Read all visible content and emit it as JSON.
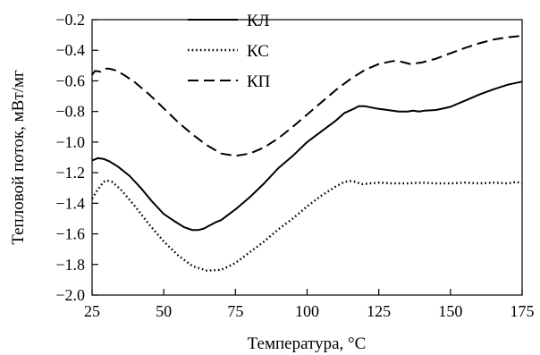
{
  "chart_data": {
    "type": "line",
    "xlabel": "Температура, °C",
    "ylabel": "Тепловой поток, мВт/мг",
    "xlim": [
      25,
      175
    ],
    "ylim": [
      -2.0,
      -0.2
    ],
    "xticks": [
      25,
      50,
      75,
      100,
      125,
      150,
      175
    ],
    "yticks": [
      -2.0,
      -1.8,
      -1.6,
      -1.4,
      -1.2,
      -1.0,
      -0.8,
      -0.6,
      -0.4,
      -0.2
    ],
    "grid": false,
    "legend_position": "top-left",
    "series": [
      {
        "name": "КЛ",
        "style": "solid",
        "color": "#000000",
        "x": [
          25,
          27,
          29,
          31,
          34,
          38,
          42,
          46,
          50,
          54,
          57,
          60,
          62,
          64,
          66,
          68,
          70,
          75,
          80,
          85,
          90,
          95,
          100,
          105,
          110,
          113,
          116,
          118,
          120,
          124,
          128,
          132,
          135,
          137,
          139,
          141,
          145,
          150,
          155,
          160,
          165,
          170,
          175
        ],
        "y": [
          -1.12,
          -1.105,
          -1.11,
          -1.125,
          -1.16,
          -1.22,
          -1.3,
          -1.39,
          -1.47,
          -1.52,
          -1.555,
          -1.575,
          -1.575,
          -1.565,
          -1.545,
          -1.525,
          -1.51,
          -1.44,
          -1.36,
          -1.27,
          -1.17,
          -1.09,
          -1.0,
          -0.93,
          -0.86,
          -0.81,
          -0.785,
          -0.765,
          -0.765,
          -0.78,
          -0.79,
          -0.8,
          -0.8,
          -0.795,
          -0.8,
          -0.795,
          -0.79,
          -0.77,
          -0.73,
          -0.69,
          -0.655,
          -0.625,
          -0.605
        ]
      },
      {
        "name": "КС",
        "style": "dotted",
        "color": "#000000",
        "x": [
          25,
          27,
          29,
          30,
          32,
          35,
          40,
          45,
          50,
          55,
          60,
          65,
          70,
          75,
          80,
          85,
          90,
          95,
          100,
          105,
          110,
          113,
          115,
          117,
          119,
          122,
          125,
          130,
          135,
          140,
          145,
          150,
          155,
          160,
          165,
          170,
          173,
          175
        ],
        "y": [
          -1.37,
          -1.31,
          -1.26,
          -1.25,
          -1.26,
          -1.31,
          -1.42,
          -1.54,
          -1.65,
          -1.74,
          -1.81,
          -1.84,
          -1.835,
          -1.79,
          -1.72,
          -1.65,
          -1.57,
          -1.5,
          -1.42,
          -1.35,
          -1.29,
          -1.26,
          -1.255,
          -1.26,
          -1.275,
          -1.27,
          -1.265,
          -1.27,
          -1.27,
          -1.265,
          -1.27,
          -1.27,
          -1.265,
          -1.27,
          -1.265,
          -1.27,
          -1.26,
          -1.27
        ]
      },
      {
        "name": "КП",
        "style": "dashed",
        "color": "#000000",
        "x": [
          25,
          26,
          28,
          30,
          31,
          33,
          36,
          40,
          45,
          50,
          55,
          60,
          65,
          70,
          75,
          80,
          85,
          90,
          95,
          100,
          105,
          110,
          115,
          120,
          125,
          130,
          133,
          136,
          140,
          145,
          150,
          155,
          160,
          165,
          170,
          175
        ],
        "y": [
          -0.56,
          -0.535,
          -0.54,
          -0.52,
          -0.52,
          -0.53,
          -0.56,
          -0.61,
          -0.69,
          -0.78,
          -0.87,
          -0.95,
          -1.02,
          -1.075,
          -1.09,
          -1.075,
          -1.035,
          -0.975,
          -0.9,
          -0.82,
          -0.74,
          -0.66,
          -0.59,
          -0.53,
          -0.49,
          -0.47,
          -0.475,
          -0.49,
          -0.48,
          -0.455,
          -0.42,
          -0.385,
          -0.355,
          -0.33,
          -0.315,
          -0.305
        ]
      }
    ]
  }
}
